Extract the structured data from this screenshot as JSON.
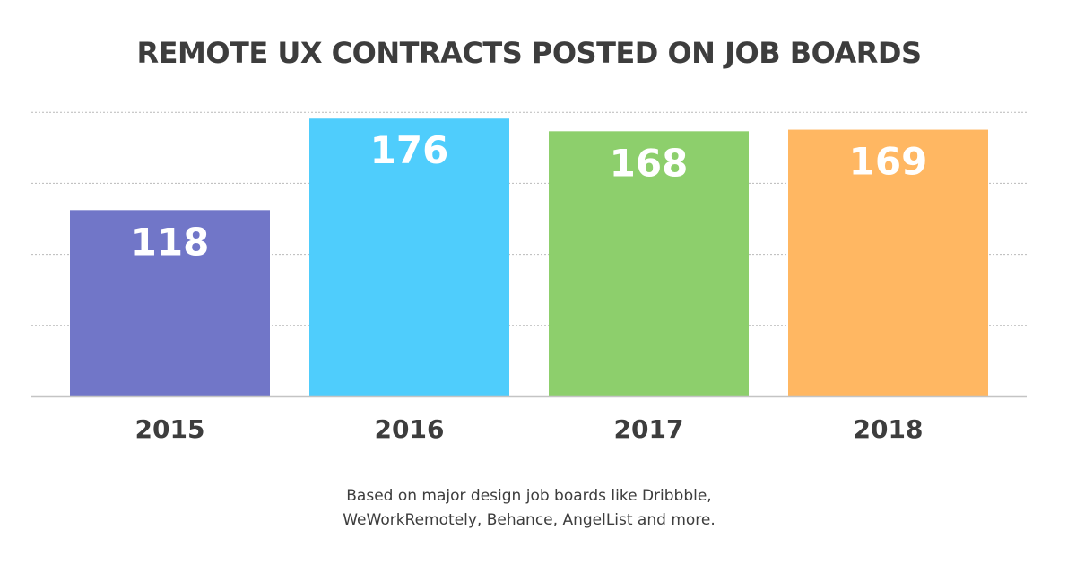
{
  "chart_data": {
    "type": "bar",
    "title": "REMOTE UX CONTRACTS POSTED ON JOB BOARDS",
    "categories": [
      "2015",
      "2016",
      "2017",
      "2018"
    ],
    "values": [
      118,
      176,
      168,
      169
    ],
    "colors": [
      "#7176c8",
      "#4fcdfc",
      "#8dcf6c",
      "#ffb762"
    ],
    "ylim": [
      0,
      180
    ],
    "grid": true,
    "xlabel": "",
    "ylabel": ""
  },
  "footnote": {
    "line1": "Based on major design job boards like Dribbble,",
    "line2": "WeWorkRemotely, Behance, AngelList and more."
  }
}
